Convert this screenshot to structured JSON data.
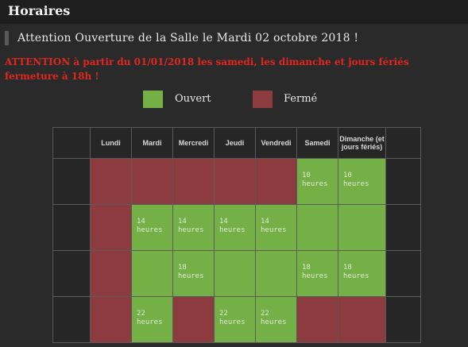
{
  "page": {
    "title": "Horaires"
  },
  "notice": "Attention Ouverture de la Salle le Mardi 02 octobre 2018 !",
  "warning": "ATTENTION à partir du 01/01/2018 les samedi, les dimanche et jours fériés fermeture à 18h !",
  "legend": {
    "open_label": "Ouvert",
    "closed_label": "Fermé",
    "open_color": "#74b045",
    "closed_color": "#8c3b3e"
  },
  "schedule": {
    "days": [
      "Lundi",
      "Mardi",
      "Mercredi",
      "Jeudi",
      "Vendredi",
      "Samedi",
      "Dimanche (et jours fériés)"
    ],
    "rows": [
      {
        "cells": [
          {
            "s": "c",
            "t": ""
          },
          {
            "s": "c",
            "t": ""
          },
          {
            "s": "c",
            "t": ""
          },
          {
            "s": "c",
            "t": ""
          },
          {
            "s": "c",
            "t": ""
          },
          {
            "s": "o",
            "t": "10 heures"
          },
          {
            "s": "o",
            "t": "10 heures"
          }
        ]
      },
      {
        "cells": [
          {
            "s": "c",
            "t": ""
          },
          {
            "s": "o",
            "t": "14 heures"
          },
          {
            "s": "o",
            "t": "14 heures"
          },
          {
            "s": "o",
            "t": "14 heures"
          },
          {
            "s": "o",
            "t": "14 heures"
          },
          {
            "s": "o",
            "t": ""
          },
          {
            "s": "o",
            "t": ""
          }
        ]
      },
      {
        "cells": [
          {
            "s": "c",
            "t": ""
          },
          {
            "s": "o",
            "t": ""
          },
          {
            "s": "o",
            "t": "18 heures"
          },
          {
            "s": "o",
            "t": ""
          },
          {
            "s": "o",
            "t": ""
          },
          {
            "s": "o",
            "t": "18 heures"
          },
          {
            "s": "o",
            "t": "18 heures"
          }
        ]
      },
      {
        "cells": [
          {
            "s": "c",
            "t": ""
          },
          {
            "s": "o",
            "t": "22 heures"
          },
          {
            "s": "c",
            "t": ""
          },
          {
            "s": "o",
            "t": "22 heures"
          },
          {
            "s": "o",
            "t": "22 heures"
          },
          {
            "s": "c",
            "t": ""
          },
          {
            "s": "c",
            "t": ""
          }
        ]
      }
    ]
  }
}
